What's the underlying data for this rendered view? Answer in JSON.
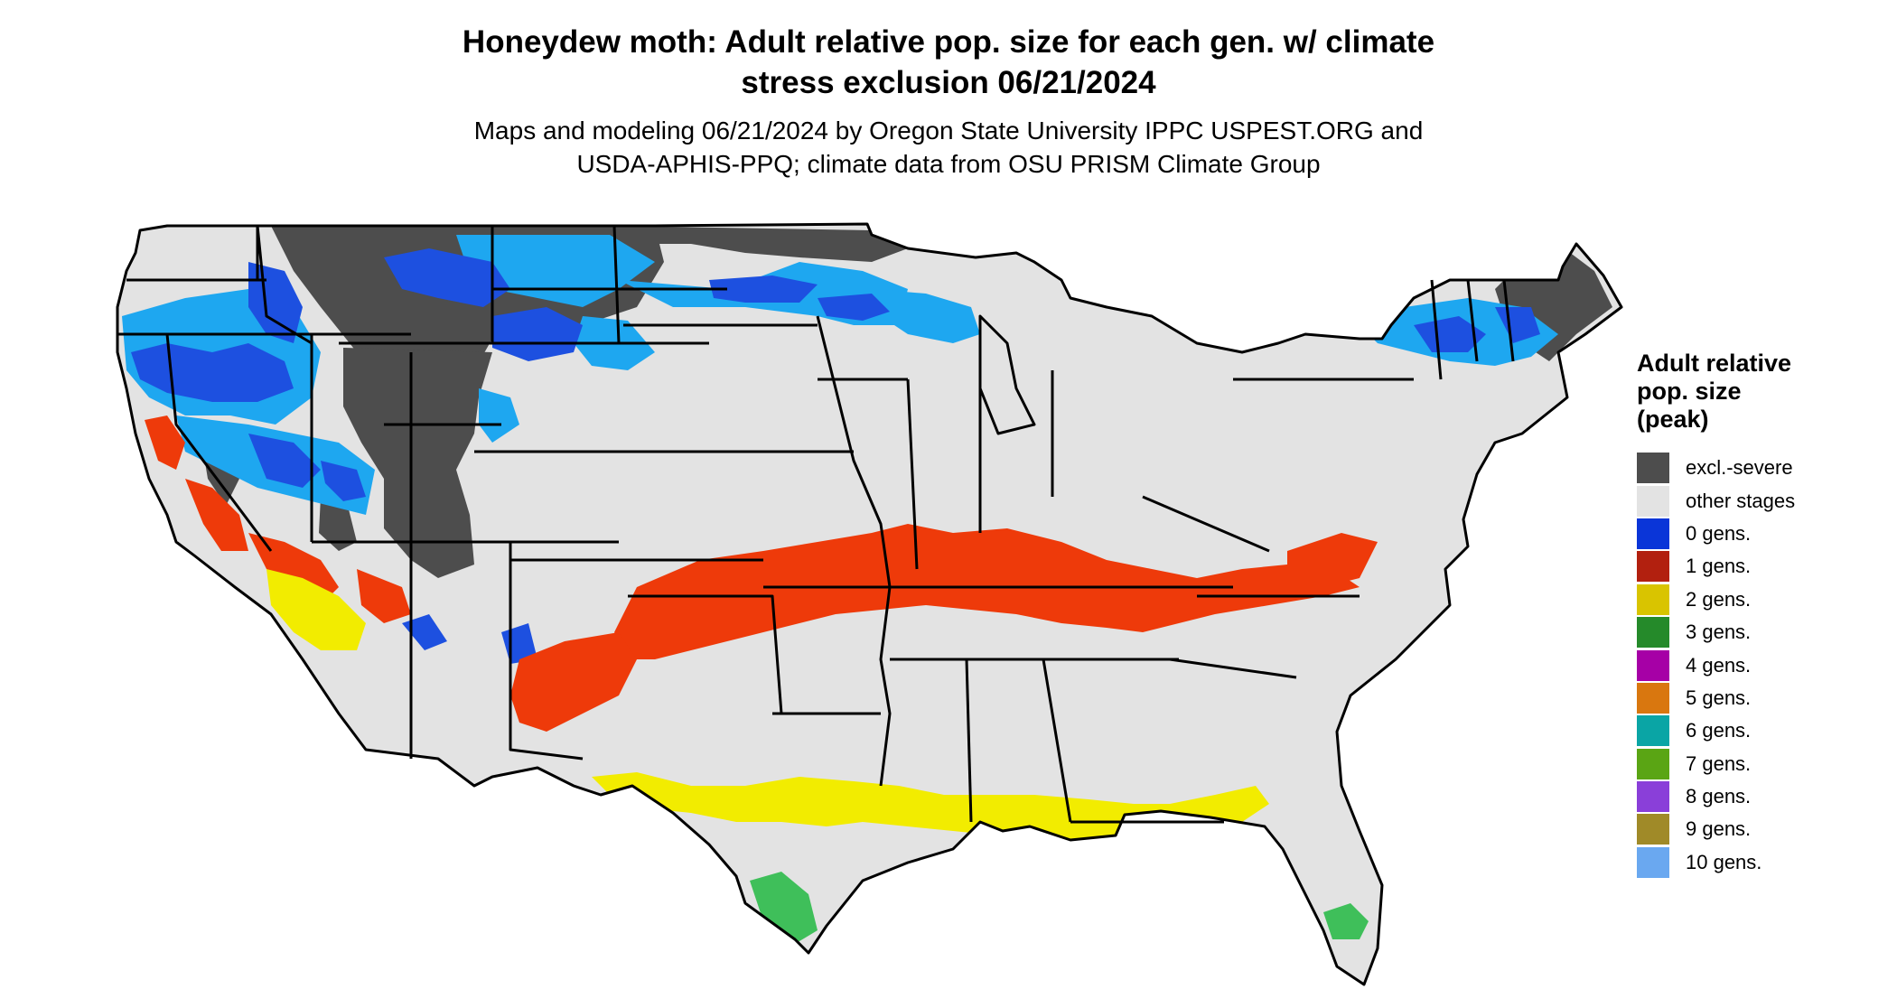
{
  "title_lines": [
    "Honeydew moth: Adult relative pop. size for each gen. w/ climate",
    "stress exclusion 06/21/2024"
  ],
  "subtitle_lines": [
    "Maps and modeling 06/21/2024 by Oregon State University IPPC USPEST.ORG and",
    "USDA-APHIS-PPQ; climate data from OSU PRISM Climate Group"
  ],
  "legend": {
    "title_lines": [
      "Adult relative",
      "pop. size",
      "(peak)"
    ],
    "items": [
      {
        "label": "excl.-severe",
        "color": "#4d4d4d"
      },
      {
        "label": "other stages",
        "color": "#e3e3e3"
      },
      {
        "label": "0 gens.",
        "color": "#0a35d8"
      },
      {
        "label": "1 gens.",
        "color": "#b2200f"
      },
      {
        "label": "2 gens.",
        "color": "#d9c400"
      },
      {
        "label": "3 gens.",
        "color": "#258a2a"
      },
      {
        "label": "4 gens.",
        "color": "#a600a6"
      },
      {
        "label": "5 gens.",
        "color": "#d9770f"
      },
      {
        "label": "6 gens.",
        "color": "#0aa5a5"
      },
      {
        "label": "7 gens.",
        "color": "#5aa514"
      },
      {
        "label": "8 gens.",
        "color": "#8a3fd9"
      },
      {
        "label": "9 gens.",
        "color": "#a08a28"
      },
      {
        "label": "10 gens.",
        "color": "#6aa8f0"
      }
    ]
  },
  "map_colors": {
    "land_base": "#e3e3e3",
    "excluded": "#4d4d4d",
    "gen0_light": "#1ea7f0",
    "gen0_dark": "#1d50e0",
    "gen1": "#ee3a0a",
    "gen2": "#f2ec00",
    "gen3": "#3fbf5a",
    "gen4": "#d400d4",
    "borders": "#000000"
  }
}
